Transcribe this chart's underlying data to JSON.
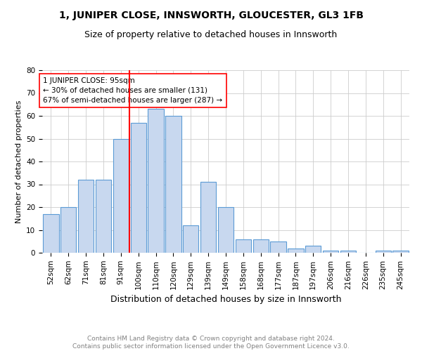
{
  "title": "1, JUNIPER CLOSE, INNSWORTH, GLOUCESTER, GL3 1FB",
  "subtitle": "Size of property relative to detached houses in Innsworth",
  "xlabel": "Distribution of detached houses by size in Innsworth",
  "ylabel": "Number of detached properties",
  "categories": [
    "52sqm",
    "62sqm",
    "71sqm",
    "81sqm",
    "91sqm",
    "100sqm",
    "110sqm",
    "120sqm",
    "129sqm",
    "139sqm",
    "149sqm",
    "158sqm",
    "168sqm",
    "177sqm",
    "187sqm",
    "197sqm",
    "206sqm",
    "216sqm",
    "226sqm",
    "235sqm",
    "245sqm"
  ],
  "values": [
    17,
    20,
    32,
    32,
    50,
    57,
    63,
    60,
    12,
    31,
    20,
    6,
    6,
    5,
    2,
    3,
    1,
    1,
    0,
    1,
    1
  ],
  "bar_color": "#c8d8ef",
  "bar_edgecolor": "#5b9bd5",
  "bar_linewidth": 0.8,
  "vline_x": 4.5,
  "vline_color": "red",
  "vline_linewidth": 1.5,
  "annotation_text": "1 JUNIPER CLOSE: 95sqm\n← 30% of detached houses are smaller (131)\n67% of semi-detached houses are larger (287) →",
  "ylim": [
    0,
    80
  ],
  "yticks": [
    0,
    10,
    20,
    30,
    40,
    50,
    60,
    70,
    80
  ],
  "grid_color": "#cccccc",
  "footer_text": "Contains HM Land Registry data © Crown copyright and database right 2024.\nContains public sector information licensed under the Open Government Licence v3.0.",
  "background_color": "#ffffff",
  "title_fontsize": 10,
  "subtitle_fontsize": 9,
  "xlabel_fontsize": 9,
  "ylabel_fontsize": 8,
  "tick_fontsize": 7.5,
  "annotation_fontsize": 7.5,
  "footer_fontsize": 6.5
}
